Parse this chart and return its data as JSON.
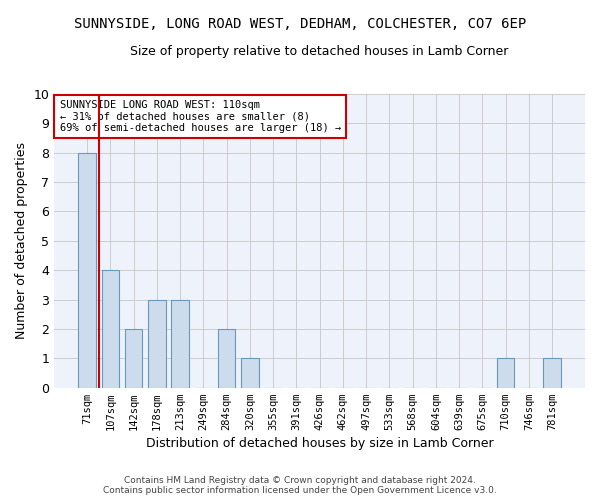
{
  "title": "SUNNYSIDE, LONG ROAD WEST, DEDHAM, COLCHESTER, CO7 6EP",
  "subtitle": "Size of property relative to detached houses in Lamb Corner",
  "xlabel": "Distribution of detached houses by size in Lamb Corner",
  "ylabel": "Number of detached properties",
  "bin_labels": [
    "71sqm",
    "107sqm",
    "142sqm",
    "178sqm",
    "213sqm",
    "249sqm",
    "284sqm",
    "320sqm",
    "355sqm",
    "391sqm",
    "426sqm",
    "462sqm",
    "497sqm",
    "533sqm",
    "568sqm",
    "604sqm",
    "639sqm",
    "675sqm",
    "710sqm",
    "746sqm",
    "781sqm"
  ],
  "bar_values": [
    8,
    4,
    2,
    3,
    3,
    0,
    2,
    1,
    0,
    0,
    0,
    0,
    0,
    0,
    0,
    0,
    0,
    0,
    1,
    0,
    1
  ],
  "bar_color": "#ccdcec",
  "bar_edge_color": "#6699bb",
  "vline_color": "#cc0000",
  "annotation_text": "SUNNYSIDE LONG ROAD WEST: 110sqm\n← 31% of detached houses are smaller (8)\n69% of semi-detached houses are larger (18) →",
  "annotation_box_color": "#ffffff",
  "annotation_box_edge": "#cc0000",
  "ylim": [
    0,
    10
  ],
  "yticks": [
    0,
    1,
    2,
    3,
    4,
    5,
    6,
    7,
    8,
    9,
    10
  ],
  "footer": "Contains HM Land Registry data © Crown copyright and database right 2024.\nContains public sector information licensed under the Open Government Licence v3.0.",
  "bg_color": "#eef2fa",
  "grid_color": "#cccccc",
  "title_fontsize": 10,
  "subtitle_fontsize": 9,
  "bar_width": 0.75
}
